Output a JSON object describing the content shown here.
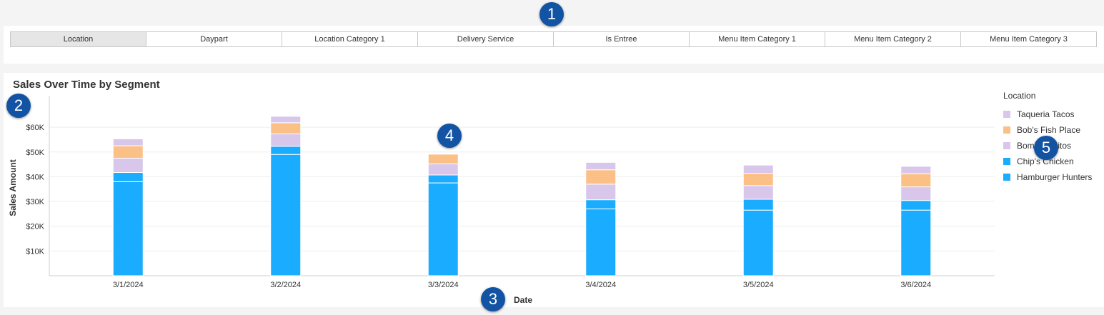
{
  "segment_tabs": [
    {
      "label": "Location",
      "active": true
    },
    {
      "label": "Daypart",
      "active": false
    },
    {
      "label": "Location Category 1",
      "active": false
    },
    {
      "label": "Delivery Service",
      "active": false
    },
    {
      "label": "Is Entree",
      "active": false
    },
    {
      "label": "Menu Item Category 1",
      "active": false
    },
    {
      "label": "Menu Item Category 2",
      "active": false
    },
    {
      "label": "Menu Item Category 3",
      "active": false
    }
  ],
  "callouts": [
    "1",
    "2",
    "3",
    "4",
    "5"
  ],
  "chart_data": {
    "type": "bar",
    "stacked": true,
    "title": "Sales Over Time by Segment",
    "xlabel": "Date",
    "ylabel": "Sales Amount",
    "ylim": [
      0,
      71000
    ],
    "yticks": [
      10000,
      20000,
      30000,
      40000,
      50000,
      60000
    ],
    "ytick_labels": [
      "$10K",
      "$20K",
      "$30K",
      "$40K",
      "$50K",
      "$60K"
    ],
    "categories": [
      "3/1/2024",
      "3/2/2024",
      "3/3/2024",
      "3/4/2024",
      "3/5/2024",
      "3/6/2024"
    ],
    "grid": true,
    "legend_title": "Location",
    "legend_position": "right",
    "series": [
      {
        "name": "Hamburger Hunters",
        "color": "#1aadff",
        "values": [
          38000,
          49000,
          37500,
          27000,
          26500,
          26500
        ]
      },
      {
        "name": "Chip's Chicken",
        "color": "#1aadff",
        "values": [
          3700,
          3300,
          3200,
          3700,
          4400,
          3900
        ]
      },
      {
        "name": "Bomb Burritos",
        "color": "#d8c6eb",
        "values": [
          5800,
          5000,
          4500,
          6300,
          5500,
          5500
        ]
      },
      {
        "name": "Bob's Fish Place",
        "color": "#fbc086",
        "values": [
          5000,
          4500,
          3900,
          5800,
          5000,
          5300
        ]
      },
      {
        "name": "Taqueria Tacos",
        "color": "#d8c6eb",
        "values": [
          2800,
          2600,
          0,
          3000,
          3300,
          3000
        ]
      }
    ],
    "legend_order": [
      "Taqueria Tacos",
      "Bob's Fish Place",
      "Bomb Burritos",
      "Chip's Chicken",
      "Hamburger Hunters"
    ]
  }
}
